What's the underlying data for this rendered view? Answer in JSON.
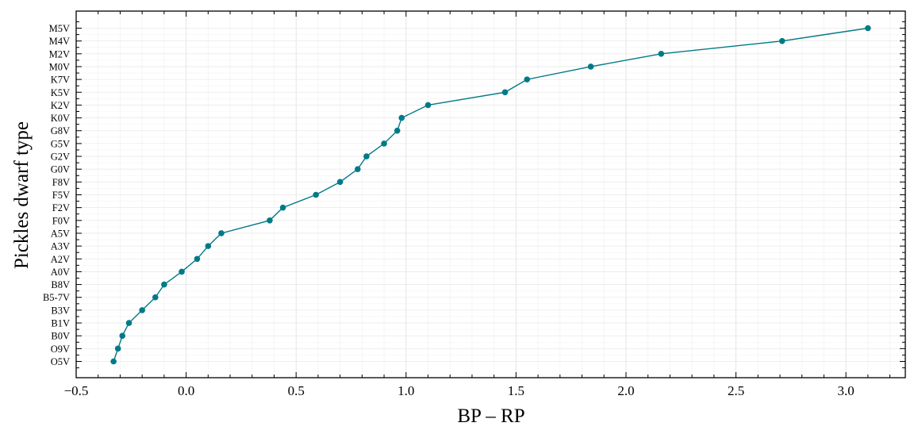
{
  "chart_data": {
    "type": "line",
    "xlabel": "BP – RP",
    "ylabel": "Pickles dwarf type",
    "xlim": [
      -0.5,
      3.27
    ],
    "xticks": [
      "−0.5",
      "0.0",
      "0.5",
      "1.0",
      "1.5",
      "2.0",
      "2.5",
      "3.0"
    ],
    "xtick_values": [
      -0.5,
      0.0,
      0.5,
      1.0,
      1.5,
      2.0,
      2.5,
      3.0
    ],
    "categories": [
      "O5V",
      "O9V",
      "B0V",
      "B1V",
      "B3V",
      "B5-7V",
      "B8V",
      "A0V",
      "A2V",
      "A3V",
      "A5V",
      "F0V",
      "F2V",
      "F5V",
      "F8V",
      "G0V",
      "G2V",
      "G5V",
      "G8V",
      "K0V",
      "K2V",
      "K5V",
      "K7V",
      "M0V",
      "M2V",
      "M4V",
      "M5V"
    ],
    "grid": true,
    "series": [
      {
        "color": "#007a87",
        "points": [
          {
            "x": -0.33,
            "y": "O5V"
          },
          {
            "x": -0.31,
            "y": "O9V"
          },
          {
            "x": -0.29,
            "y": "B0V"
          },
          {
            "x": -0.26,
            "y": "B1V"
          },
          {
            "x": -0.2,
            "y": "B3V"
          },
          {
            "x": -0.14,
            "y": "B5-7V"
          },
          {
            "x": -0.1,
            "y": "B8V"
          },
          {
            "x": -0.02,
            "y": "A0V"
          },
          {
            "x": 0.05,
            "y": "A2V"
          },
          {
            "x": 0.1,
            "y": "A3V"
          },
          {
            "x": 0.16,
            "y": "A5V"
          },
          {
            "x": 0.38,
            "y": "F0V"
          },
          {
            "x": 0.44,
            "y": "F2V"
          },
          {
            "x": 0.59,
            "y": "F5V"
          },
          {
            "x": 0.7,
            "y": "F8V"
          },
          {
            "x": 0.78,
            "y": "G0V"
          },
          {
            "x": 0.82,
            "y": "G2V"
          },
          {
            "x": 0.9,
            "y": "G5V"
          },
          {
            "x": 0.96,
            "y": "G8V"
          },
          {
            "x": 0.98,
            "y": "K0V"
          },
          {
            "x": 1.1,
            "y": "K2V"
          },
          {
            "x": 1.45,
            "y": "K5V"
          },
          {
            "x": 1.55,
            "y": "K7V"
          },
          {
            "x": 1.84,
            "y": "M0V"
          },
          {
            "x": 2.16,
            "y": "M2V"
          },
          {
            "x": 2.71,
            "y": "M4V"
          },
          {
            "x": 3.1,
            "y": "M5V"
          }
        ]
      }
    ]
  }
}
